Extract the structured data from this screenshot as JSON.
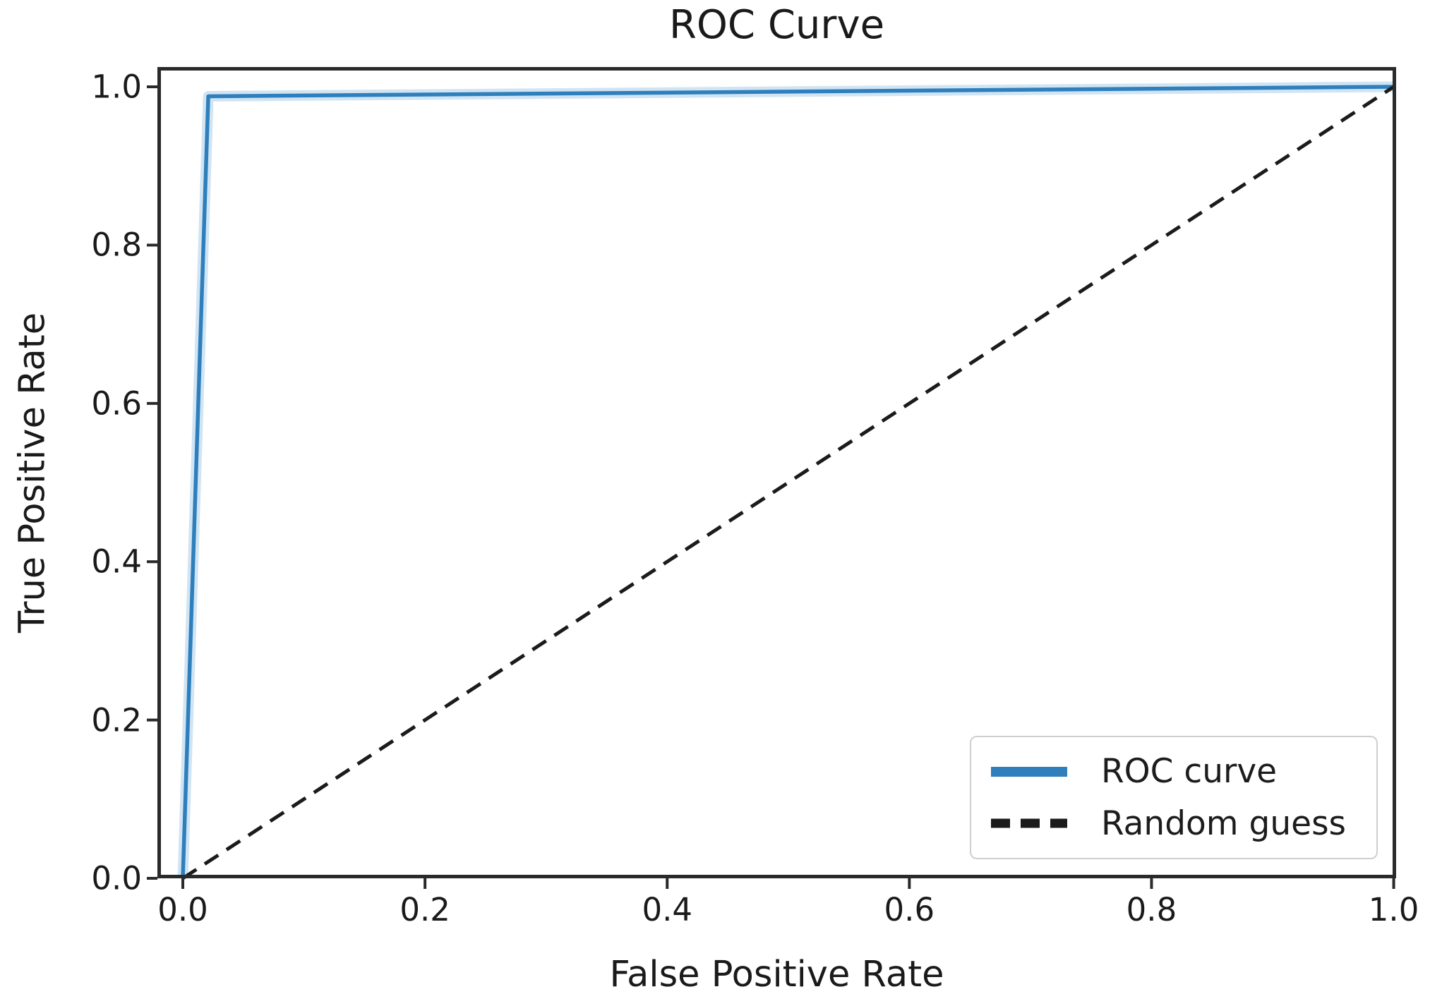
{
  "chart_data": {
    "type": "line",
    "title": "ROC Curve",
    "xlabel": "False Positive Rate",
    "ylabel": "True Positive Rate",
    "xlim": [
      -0.021,
      1.002
    ],
    "ylim": [
      0.0,
      1.025
    ],
    "x_ticks": [
      0.0,
      0.2,
      0.4,
      0.6,
      0.8,
      1.0
    ],
    "y_ticks": [
      0.0,
      0.2,
      0.4,
      0.6,
      0.8,
      1.0
    ],
    "x_tick_labels": [
      "0.0",
      "0.2",
      "0.4",
      "0.6",
      "0.8",
      "1.0"
    ],
    "y_tick_labels": [
      "0.0",
      "0.2",
      "0.4",
      "0.6",
      "0.8",
      "1.0"
    ],
    "grid": false,
    "legend_position": "lower right",
    "series": [
      {
        "name": "ROC curve",
        "line_style": "solid",
        "color": "#2e7fbc",
        "points": [
          [
            0.0,
            0.0
          ],
          [
            0.021,
            0.988
          ],
          [
            1.0,
            1.0
          ]
        ]
      },
      {
        "name": "Random guess",
        "line_style": "dashed",
        "color": "#1b1b1b",
        "points": [
          [
            0.0,
            0.0
          ],
          [
            1.0,
            1.0
          ]
        ]
      }
    ]
  },
  "colors": {
    "background": "#ffffff",
    "axes": "#2a2a2a",
    "text": "#1a1a1a",
    "roc_line": "#2e7fbc",
    "roc_halo": "#a9cde9",
    "dashed_line": "#1b1b1b",
    "legend_border": "#cfcfcf"
  }
}
